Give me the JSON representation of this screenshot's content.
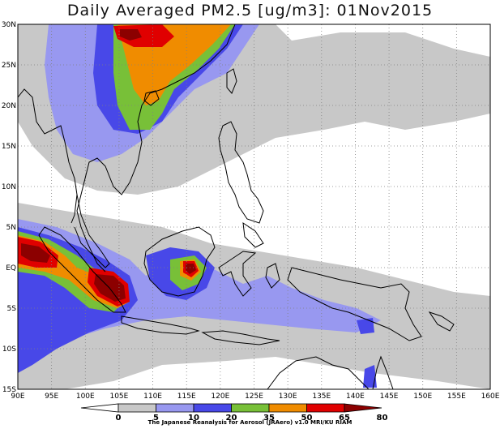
{
  "title": "Daily Averaged PM2.5 [ug/m3]: 01Nov2015",
  "credit": "The Japanese Reanalysis for Aerosol (JRAero) v1.0 MRI/KU RIAM",
  "map": {
    "lon_range": [
      90,
      160
    ],
    "lat_range": [
      -15,
      30
    ],
    "x_ticks": [
      "90E",
      "95E",
      "100E",
      "105E",
      "110E",
      "115E",
      "120E",
      "125E",
      "130E",
      "135E",
      "140E",
      "145E",
      "150E",
      "155E",
      "160E"
    ],
    "y_ticks": [
      "30N",
      "25N",
      "20N",
      "15N",
      "10N",
      "5N",
      "EQ",
      "5S",
      "10S",
      "15S"
    ],
    "grid": "dotted"
  },
  "colorbar": {
    "levels": [
      "0",
      "5",
      "10",
      "20",
      "35",
      "50",
      "65",
      "80"
    ],
    "colors": [
      "#ffffff",
      "#c8c8c8",
      "#9898f0",
      "#4848e8",
      "#78c038",
      "#f08c00",
      "#e00000",
      "#8c0000"
    ]
  }
}
